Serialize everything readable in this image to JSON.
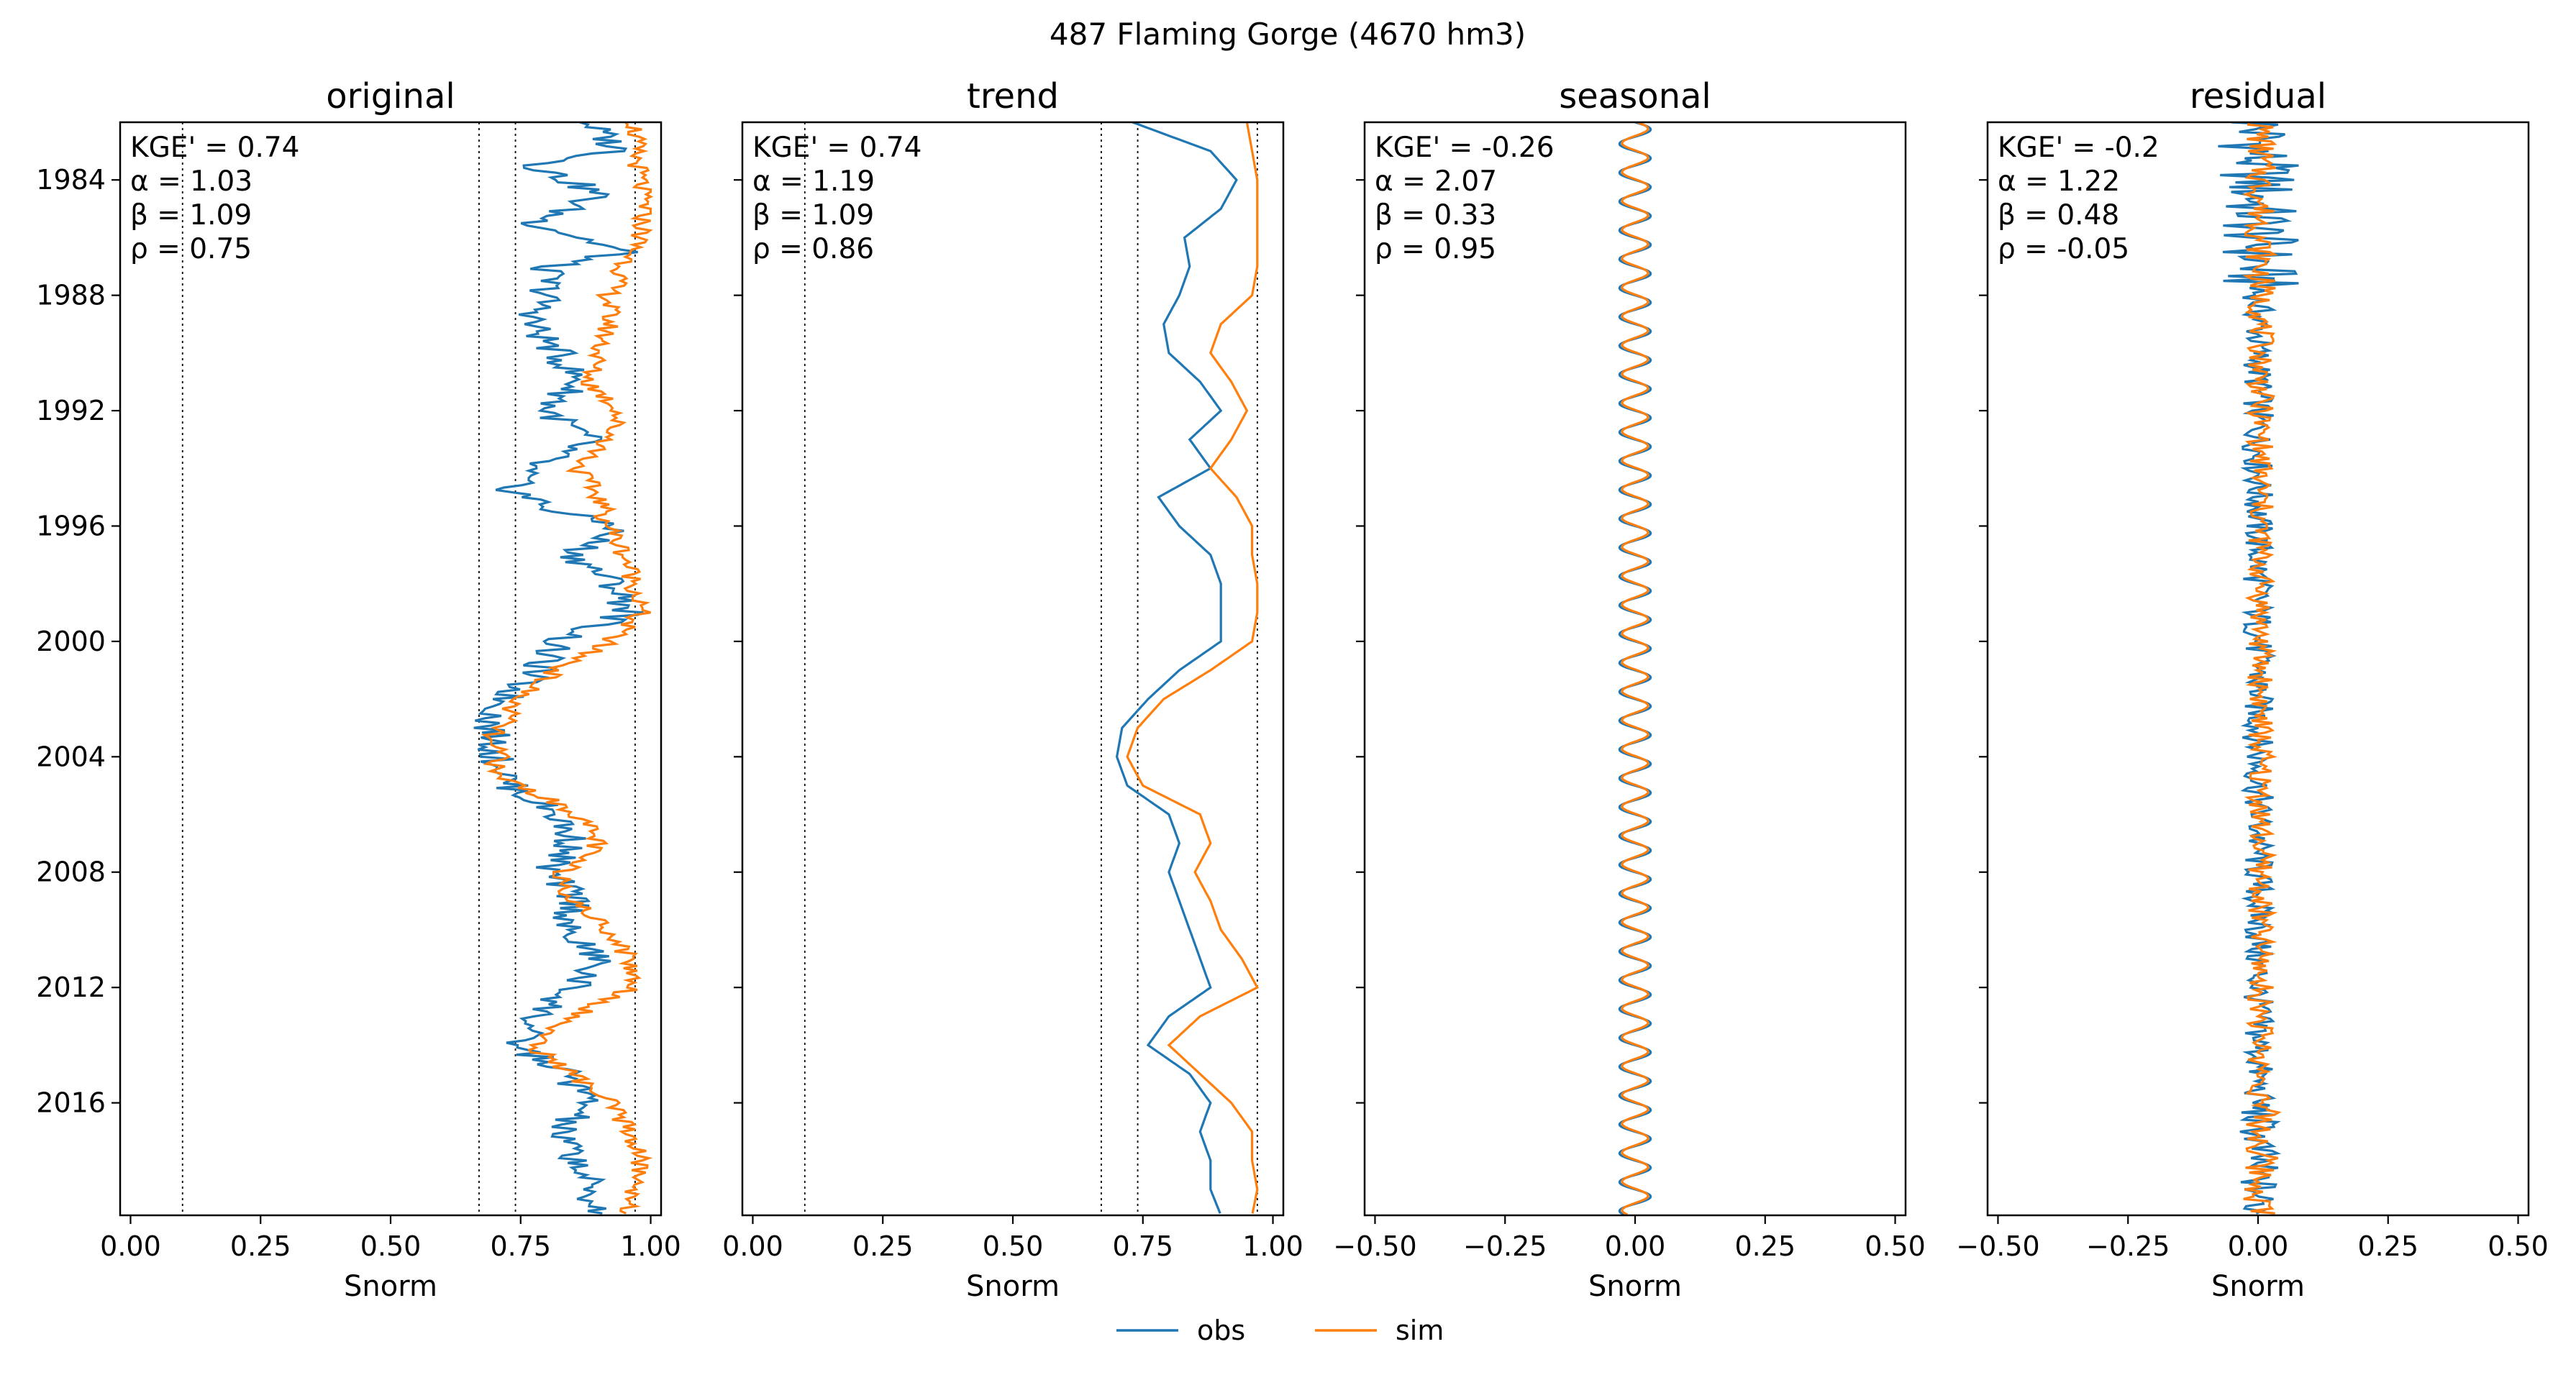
{
  "figure_title": "487  Flaming Gorge (4670 hm3)",
  "legend": {
    "obs": {
      "label": "obs",
      "color": "#1f77b4"
    },
    "sim": {
      "label": "sim",
      "color": "#ff7f0e"
    }
  },
  "y_ticks": [
    "1984",
    "1988",
    "1992",
    "1996",
    "2000",
    "2004",
    "2008",
    "2012",
    "2016"
  ],
  "chart_data": [
    {
      "type": "line",
      "title": "original",
      "xlabel": "Snorm",
      "ylabel": "",
      "xlim": [
        -0.02,
        1.02
      ],
      "ylim_years": [
        1982.0,
        2019.9
      ],
      "y_inverted": true,
      "x_ticks": [
        "0.00",
        "0.25",
        "0.50",
        "0.75",
        "1.00"
      ],
      "vlines": [
        0.1,
        0.67,
        0.74,
        0.97
      ],
      "stats": {
        "kge": "KGE' = 0.74",
        "alpha": "α = 1.03",
        "beta": "β = 1.09",
        "rho": "ρ = 0.75"
      },
      "series": [
        {
          "name": "obs",
          "points": [
            [
              1982.0,
              0.88
            ],
            [
              1983.0,
              0.94
            ],
            [
              1983.5,
              0.78
            ],
            [
              1984.5,
              0.9
            ],
            [
              1985.5,
              0.78
            ],
            [
              1986.5,
              0.95
            ],
            [
              1987.0,
              0.8
            ],
            [
              1988.0,
              0.8
            ],
            [
              1989.0,
              0.77
            ],
            [
              1990.0,
              0.82
            ],
            [
              1991.0,
              0.86
            ],
            [
              1992.0,
              0.8
            ],
            [
              1993.0,
              0.88
            ],
            [
              1994.0,
              0.76
            ],
            [
              1994.7,
              0.73
            ],
            [
              1995.5,
              0.82
            ],
            [
              1996.0,
              0.94
            ],
            [
              1997.0,
              0.85
            ],
            [
              1998.0,
              0.93
            ],
            [
              1999.0,
              0.96
            ],
            [
              2000.0,
              0.82
            ],
            [
              2001.0,
              0.78
            ],
            [
              2002.0,
              0.72
            ],
            [
              2002.8,
              0.69
            ],
            [
              2003.5,
              0.7
            ],
            [
              2004.0,
              0.7
            ],
            [
              2004.5,
              0.72
            ],
            [
              2005.0,
              0.73
            ],
            [
              2006.0,
              0.82
            ],
            [
              2007.0,
              0.85
            ],
            [
              2008.0,
              0.8
            ],
            [
              2009.0,
              0.86
            ],
            [
              2010.0,
              0.83
            ],
            [
              2011.0,
              0.9
            ],
            [
              2012.0,
              0.85
            ],
            [
              2013.0,
              0.78
            ],
            [
              2014.0,
              0.74
            ],
            [
              2015.0,
              0.84
            ],
            [
              2016.0,
              0.88
            ],
            [
              2017.0,
              0.82
            ],
            [
              2018.0,
              0.86
            ],
            [
              2019.0,
              0.88
            ],
            [
              2019.9,
              0.9
            ]
          ]
        },
        {
          "name": "sim",
          "points": [
            [
              1982.0,
              0.97
            ],
            [
              1983.0,
              0.97
            ],
            [
              1984.0,
              0.98
            ],
            [
              1985.0,
              0.99
            ],
            [
              1986.0,
              0.98
            ],
            [
              1987.0,
              0.95
            ],
            [
              1988.0,
              0.92
            ],
            [
              1989.0,
              0.92
            ],
            [
              1990.0,
              0.9
            ],
            [
              1991.0,
              0.88
            ],
            [
              1992.0,
              0.94
            ],
            [
              1993.0,
              0.92
            ],
            [
              1994.0,
              0.86
            ],
            [
              1995.0,
              0.9
            ],
            [
              1996.0,
              0.92
            ],
            [
              1997.0,
              0.95
            ],
            [
              1998.0,
              0.97
            ],
            [
              1999.0,
              0.98
            ],
            [
              2000.0,
              0.92
            ],
            [
              2001.0,
              0.82
            ],
            [
              2002.0,
              0.74
            ],
            [
              2002.8,
              0.72
            ],
            [
              2003.5,
              0.68
            ],
            [
              2004.0,
              0.72
            ],
            [
              2004.5,
              0.69
            ],
            [
              2005.0,
              0.75
            ],
            [
              2006.0,
              0.86
            ],
            [
              2007.0,
              0.9
            ],
            [
              2008.0,
              0.83
            ],
            [
              2009.0,
              0.85
            ],
            [
              2010.0,
              0.92
            ],
            [
              2011.0,
              0.96
            ],
            [
              2012.0,
              0.97
            ],
            [
              2013.0,
              0.85
            ],
            [
              2014.0,
              0.77
            ],
            [
              2015.0,
              0.85
            ],
            [
              2016.0,
              0.92
            ],
            [
              2017.0,
              0.96
            ],
            [
              2018.0,
              0.98
            ],
            [
              2019.0,
              0.97
            ],
            [
              2019.9,
              0.96
            ]
          ]
        }
      ]
    },
    {
      "type": "line",
      "title": "trend",
      "xlabel": "Snorm",
      "ylabel": "",
      "xlim": [
        -0.02,
        1.02
      ],
      "ylim_years": [
        1982.0,
        2019.9
      ],
      "y_inverted": true,
      "x_ticks": [
        "0.00",
        "0.25",
        "0.50",
        "0.75",
        "1.00"
      ],
      "vlines": [
        0.1,
        0.67,
        0.74,
        0.97
      ],
      "stats": {
        "kge": "KGE' = 0.74",
        "alpha": "α = 1.19",
        "beta": "β = 1.09",
        "rho": "ρ = 0.86"
      },
      "series": [
        {
          "name": "obs",
          "points": [
            [
              1982.0,
              0.73
            ],
            [
              1983.0,
              0.88
            ],
            [
              1984.0,
              0.93
            ],
            [
              1985.0,
              0.9
            ],
            [
              1986.0,
              0.83
            ],
            [
              1987.0,
              0.84
            ],
            [
              1988.0,
              0.82
            ],
            [
              1989.0,
              0.79
            ],
            [
              1990.0,
              0.8
            ],
            [
              1991.0,
              0.86
            ],
            [
              1992.0,
              0.9
            ],
            [
              1993.0,
              0.84
            ],
            [
              1994.0,
              0.88
            ],
            [
              1995.0,
              0.78
            ],
            [
              1996.0,
              0.82
            ],
            [
              1997.0,
              0.88
            ],
            [
              1998.0,
              0.9
            ],
            [
              1999.0,
              0.9
            ],
            [
              2000.0,
              0.9
            ],
            [
              2001.0,
              0.82
            ],
            [
              2002.0,
              0.76
            ],
            [
              2003.0,
              0.71
            ],
            [
              2004.0,
              0.7
            ],
            [
              2005.0,
              0.72
            ],
            [
              2006.0,
              0.8
            ],
            [
              2007.0,
              0.82
            ],
            [
              2008.0,
              0.8
            ],
            [
              2009.0,
              0.82
            ],
            [
              2010.0,
              0.84
            ],
            [
              2011.0,
              0.86
            ],
            [
              2012.0,
              0.88
            ],
            [
              2013.0,
              0.8
            ],
            [
              2014.0,
              0.76
            ],
            [
              2015.0,
              0.84
            ],
            [
              2016.0,
              0.88
            ],
            [
              2017.0,
              0.86
            ],
            [
              2018.0,
              0.88
            ],
            [
              2019.0,
              0.88
            ],
            [
              2019.9,
              0.9
            ]
          ]
        },
        {
          "name": "sim",
          "points": [
            [
              1982.0,
              0.95
            ],
            [
              1983.0,
              0.96
            ],
            [
              1984.0,
              0.97
            ],
            [
              1985.0,
              0.97
            ],
            [
              1986.0,
              0.97
            ],
            [
              1987.0,
              0.97
            ],
            [
              1988.0,
              0.96
            ],
            [
              1989.0,
              0.9
            ],
            [
              1990.0,
              0.88
            ],
            [
              1991.0,
              0.92
            ],
            [
              1992.0,
              0.95
            ],
            [
              1993.0,
              0.92
            ],
            [
              1994.0,
              0.88
            ],
            [
              1995.0,
              0.93
            ],
            [
              1996.0,
              0.96
            ],
            [
              1997.0,
              0.96
            ],
            [
              1998.0,
              0.97
            ],
            [
              1999.0,
              0.97
            ],
            [
              2000.0,
              0.96
            ],
            [
              2001.0,
              0.88
            ],
            [
              2002.0,
              0.79
            ],
            [
              2003.0,
              0.74
            ],
            [
              2004.0,
              0.72
            ],
            [
              2005.0,
              0.75
            ],
            [
              2006.0,
              0.86
            ],
            [
              2007.0,
              0.88
            ],
            [
              2008.0,
              0.85
            ],
            [
              2009.0,
              0.88
            ],
            [
              2010.0,
              0.9
            ],
            [
              2011.0,
              0.94
            ],
            [
              2012.0,
              0.97
            ],
            [
              2013.0,
              0.86
            ],
            [
              2014.0,
              0.8
            ],
            [
              2015.0,
              0.86
            ],
            [
              2016.0,
              0.92
            ],
            [
              2017.0,
              0.96
            ],
            [
              2018.0,
              0.96
            ],
            [
              2019.0,
              0.97
            ],
            [
              2019.9,
              0.96
            ]
          ]
        }
      ]
    },
    {
      "type": "line",
      "title": "seasonal",
      "xlabel": "Snorm",
      "ylabel": "",
      "xlim": [
        -0.52,
        0.52
      ],
      "ylim_years": [
        1982.0,
        2019.9
      ],
      "y_inverted": true,
      "x_ticks": [
        "−0.50",
        "−0.25",
        "0.00",
        "0.25",
        "0.50"
      ],
      "vlines": [],
      "stats": {
        "kge": "KGE' = -0.26",
        "alpha": "α = 2.07",
        "beta": "β = 0.33",
        "rho": "ρ = 0.95"
      },
      "seasonal_amplitude": {
        "obs": 0.03,
        "sim": 0.025
      },
      "series": [
        {
          "name": "obs",
          "points": []
        },
        {
          "name": "sim",
          "points": []
        }
      ]
    },
    {
      "type": "line",
      "title": "residual",
      "xlabel": "Snorm",
      "ylabel": "",
      "xlim": [
        -0.52,
        0.52
      ],
      "ylim_years": [
        1982.0,
        2019.9
      ],
      "y_inverted": true,
      "x_ticks": [
        "−0.50",
        "−0.25",
        "0.00",
        "0.25",
        "0.50"
      ],
      "vlines": [],
      "stats": {
        "kge": "KGE' = -0.2",
        "alpha": "α = 1.22",
        "beta": "β = 0.48",
        "rho": "ρ = -0.05"
      },
      "residual_amplitude": {
        "obs": [
          0.08,
          0.03,
          0.04
        ],
        "sim": [
          0.03,
          0.025,
          0.035
        ]
      },
      "series": [
        {
          "name": "obs",
          "points": []
        },
        {
          "name": "sim",
          "points": []
        }
      ]
    }
  ]
}
